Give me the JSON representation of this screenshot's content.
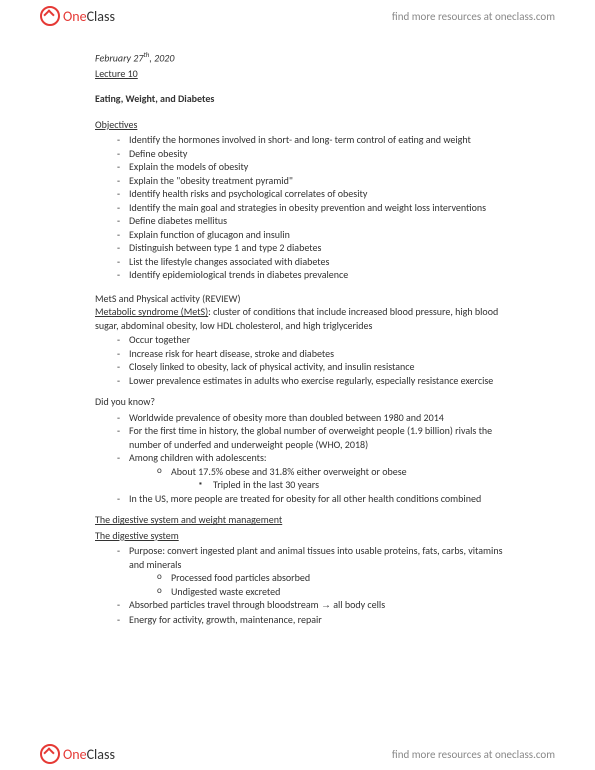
{
  "brand": {
    "part1": "One",
    "part2": "Class"
  },
  "resources_link": "find more resources at oneclass.com",
  "date_prefix": "February 27",
  "date_suffix": "th",
  "date_year": ", 2020",
  "lecture": "Lecture 10",
  "title": "Eating, Weight, and Diabetes",
  "objectives_head": "Objectives",
  "objectives": [
    "Identify the hormones involved in short- and long- term control of eating and weight",
    "Define obesity",
    "Explain the models of obesity",
    "Explain the \"obesity treatment pyramid\"",
    "Identify health risks and psychological correlates of obesity",
    "Identify the main goal and strategies in obesity prevention and weight loss interventions",
    "Define diabetes mellitus",
    "Explain function of glucagon and insulin",
    "Distinguish between type 1 and type 2 diabetes",
    "List the lifestyle changes associated with diabetes",
    "Identify epidemiological trends in diabetes prevalence"
  ],
  "mets_review": "MetS and Physical activity (REVIEW)",
  "mets_term": "Metabolic syndrome (MetS)",
  "mets_def": ": cluster of conditions that include increased blood pressure, high blood sugar, abdominal obesity, low HDL cholesterol, and high triglycerides",
  "mets_points": [
    "Occur together",
    "Increase risk for heart disease, stroke and diabetes",
    "Closely linked to obesity, lack of physical activity, and insulin resistance",
    "Lower prevalence estimates in adults who exercise regularly, especially resistance exercise"
  ],
  "dyk_head": "Did you know?",
  "dyk": {
    "p1": "Worldwide prevalence of obesity more than doubled between 1980 and 2014",
    "p2": "For the first time in history, the global number of overweight people (1.9 billion) rivals the number of underfed and underweight people (WHO, 2018)",
    "p3": "Among children with adolescents:",
    "p3a": "About 17.5% obese and 31.8% either overweight or obese",
    "p3a1": "Tripled in the last 30 years",
    "p4": "In the US, more people are treated for obesity for all other health conditions combined"
  },
  "dig_head1": "The digestive system and weight management",
  "dig_head2": "The digestive system",
  "dig": {
    "p1": "Purpose: convert ingested plant and animal tissues into usable proteins, fats, carbs, vitamins and minerals",
    "p1a": "Processed food particles absorbed",
    "p1b": "Undigested waste excreted",
    "p2a": "Absorbed particles travel through bloodstream ",
    "p2b": " all body cells",
    "p3": "Energy for activity, growth, maintenance, repair"
  }
}
